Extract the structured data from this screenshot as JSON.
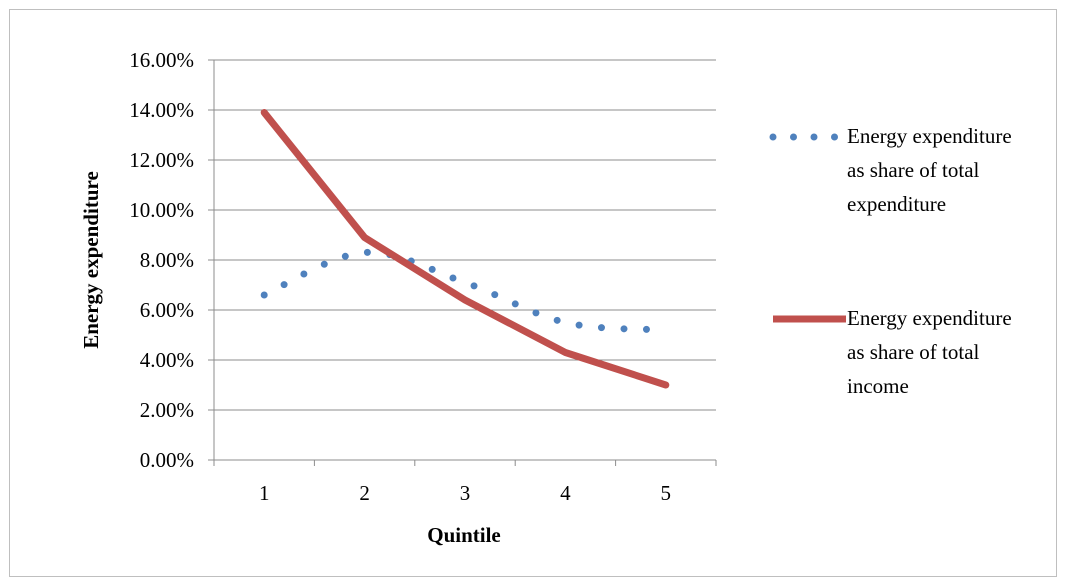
{
  "chart_data": {
    "type": "line",
    "xlabel": "Quintile",
    "ylabel": "Energy expenditure",
    "categories": [
      "1",
      "2",
      "3",
      "4",
      "5"
    ],
    "ylim": [
      0,
      0.16
    ],
    "ytick_values": [
      0,
      0.02,
      0.04,
      0.06,
      0.08,
      0.1,
      0.12,
      0.14,
      0.16
    ],
    "ytick_labels": [
      "0.00%",
      "2.00%",
      "4.00%",
      "6.00%",
      "8.00%",
      "10.00%",
      "12.00%",
      "14.00%",
      "16.00%"
    ],
    "grid": "horizontal",
    "legend_position": "right",
    "series": [
      {
        "name_lines": [
          "Energy expenditure",
          "as share of total",
          "expenditure"
        ],
        "values": [
          0.066,
          0.083,
          0.071,
          0.055,
          0.052
        ],
        "color": "#4f81bd",
        "style": "dotted"
      },
      {
        "name_lines": [
          "Energy expenditure",
          "as share of total",
          "income"
        ],
        "values": [
          0.139,
          0.089,
          0.064,
          0.043,
          0.03
        ],
        "color": "#c0504d",
        "style": "solid"
      }
    ]
  }
}
